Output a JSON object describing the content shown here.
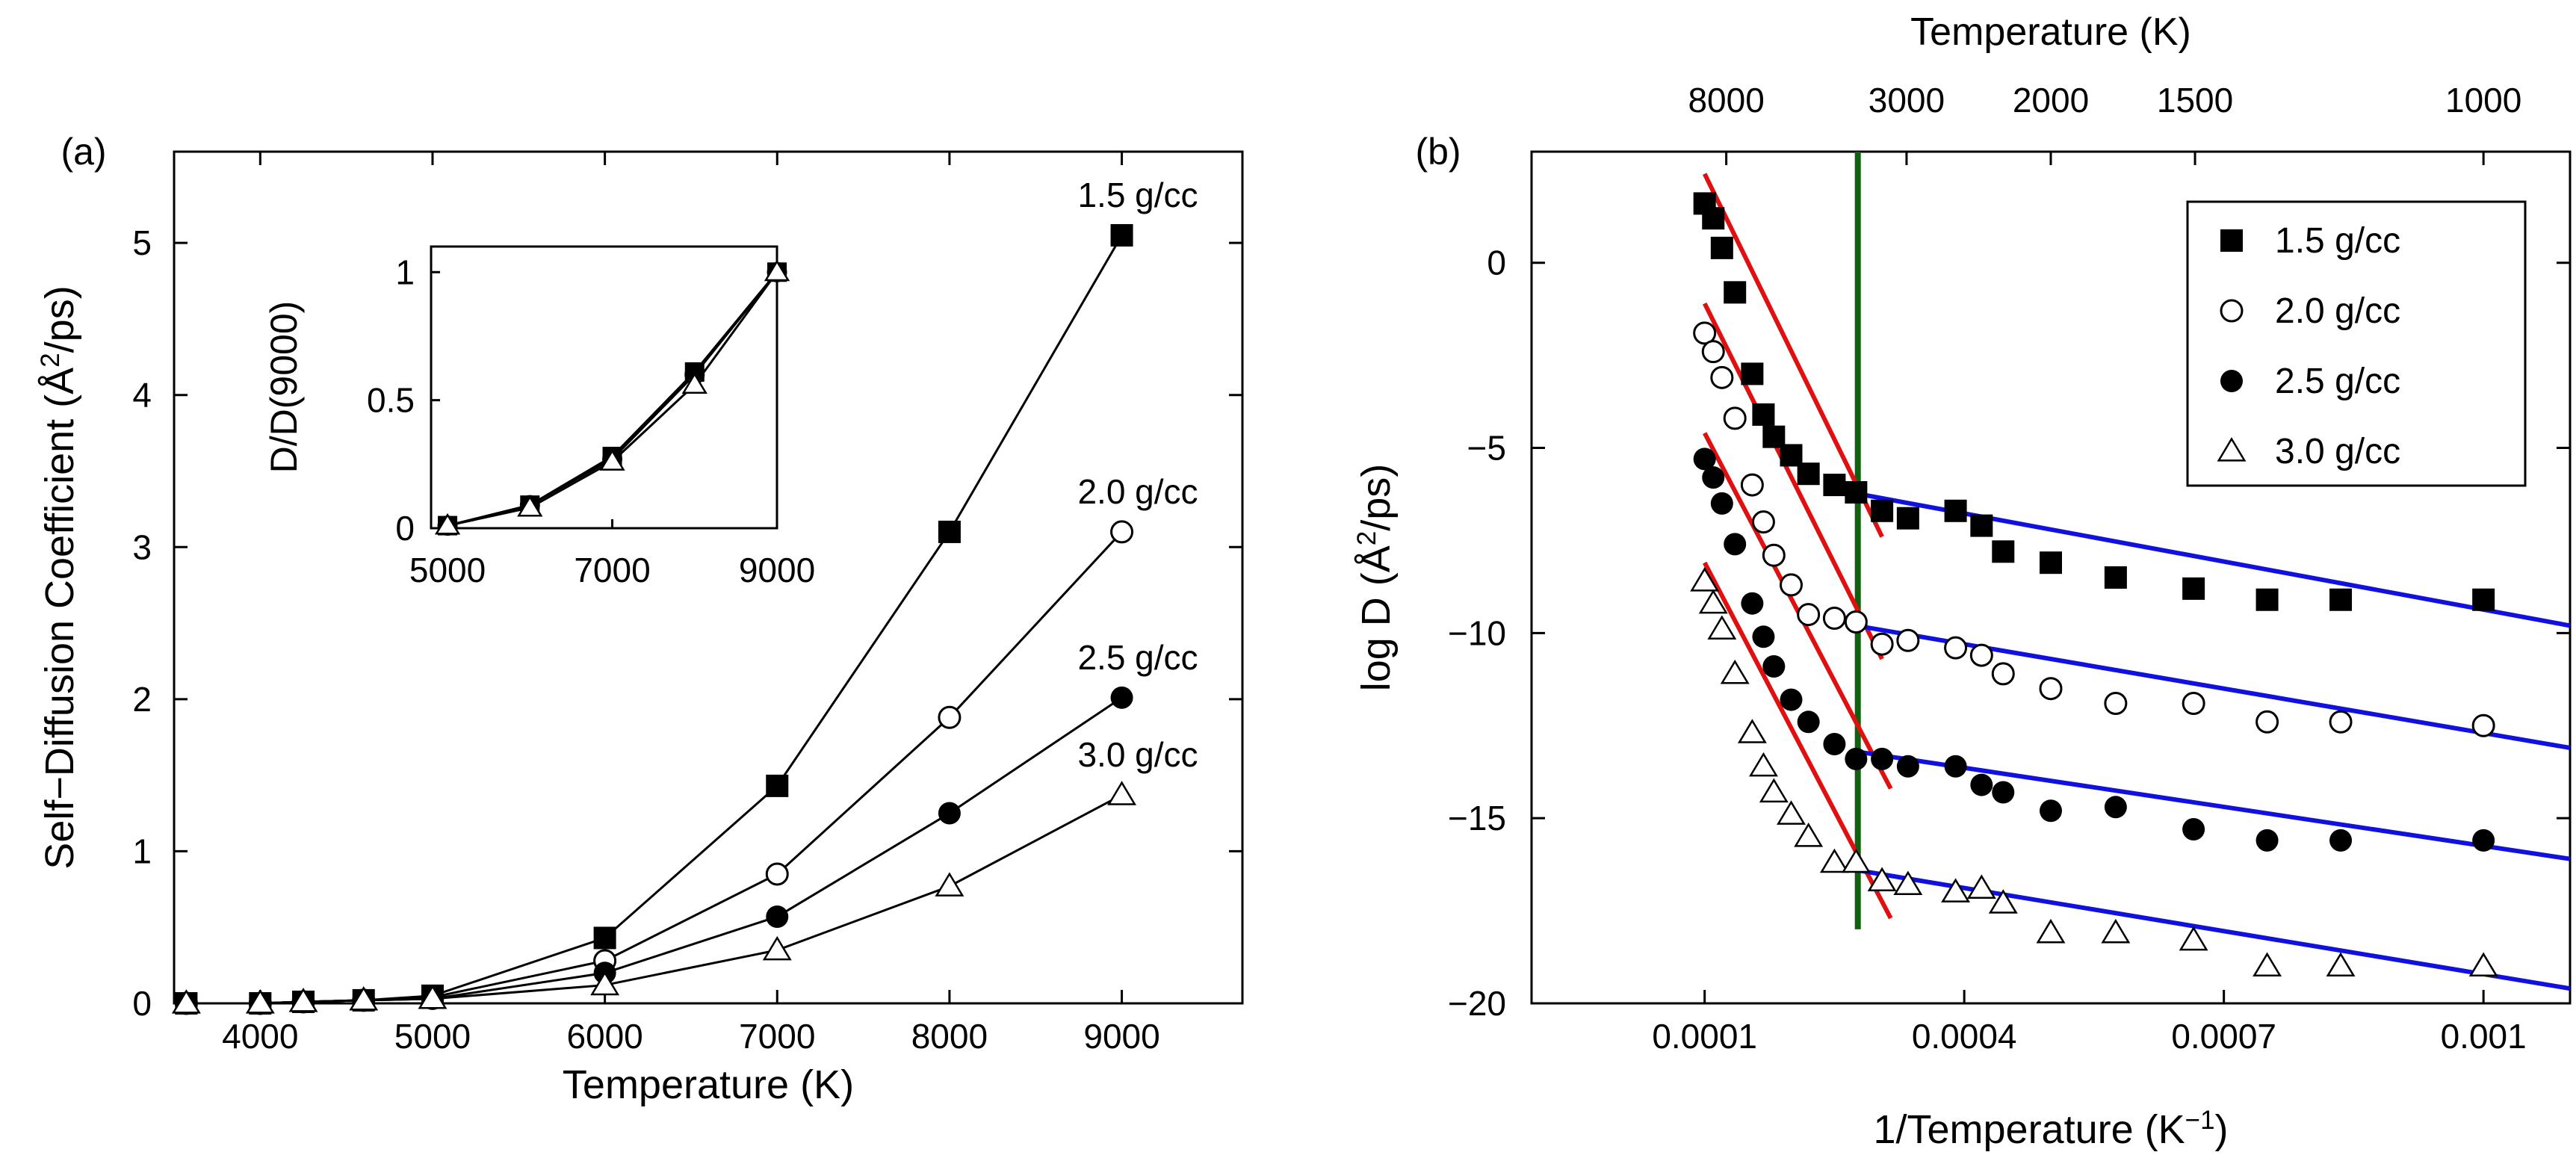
{
  "chart_data": [
    {
      "panel": "(a)",
      "type": "line",
      "xlabel": "Temperature (K)",
      "ylabel": "Self−Diffusion Coefficient (Å",
      "ylabel_sup": "2",
      "ylabel_tail": "/ps)",
      "xlim": [
        3500,
        9700
      ],
      "ylim": [
        0,
        5.6
      ],
      "xticks": [
        4000,
        5000,
        6000,
        7000,
        8000,
        9000
      ],
      "yticks": [
        0,
        1,
        2,
        3,
        4,
        5
      ],
      "x": [
        3571,
        4000,
        4250,
        4600,
        5000,
        6000,
        7000,
        8000,
        9000
      ],
      "series": [
        {
          "name": "1.5 g/cc",
          "marker": "square",
          "values": [
            0,
            0,
            0.01,
            0.02,
            0.05,
            0.43,
            1.43,
            3.1,
            5.05
          ]
        },
        {
          "name": "2.0 g/cc",
          "marker": "circle-open",
          "values": [
            0,
            0,
            0.01,
            0.02,
            0.04,
            0.28,
            0.85,
            1.88,
            3.1
          ]
        },
        {
          "name": "2.5 g/cc",
          "marker": "circle",
          "values": [
            0,
            0,
            0.01,
            0.02,
            0.03,
            0.2,
            0.57,
            1.25,
            2.01
          ]
        },
        {
          "name": "3.0 g/cc",
          "marker": "triangle-open",
          "values": [
            0,
            0,
            0.01,
            0.02,
            0.03,
            0.12,
            0.35,
            0.77,
            1.37
          ]
        }
      ]
    },
    {
      "panel": "(a) inset",
      "type": "line",
      "ylabel": "D/D(9000)",
      "xlim": [
        4800,
        9000
      ],
      "ylim": [
        0,
        1.1
      ],
      "xticks": [
        5000,
        7000,
        9000
      ],
      "yticks": [
        0,
        0.5,
        1
      ],
      "yticklabels": [
        "0",
        "0.5",
        "1"
      ],
      "x": [
        5000,
        6000,
        7000,
        8000,
        9000
      ],
      "series": [
        {
          "name": "1.5 g/cc",
          "marker": "square",
          "values": [
            0.01,
            0.09,
            0.28,
            0.61,
            1
          ]
        },
        {
          "name": "2.0 g/cc",
          "marker": "circle-open",
          "values": [
            0.01,
            0.09,
            0.27,
            0.6,
            1
          ]
        },
        {
          "name": "2.5 g/cc",
          "marker": "circle",
          "values": [
            0.01,
            0.09,
            0.28,
            0.61,
            1
          ]
        },
        {
          "name": "3.0 g/cc",
          "marker": "triangle-open",
          "values": [
            0.01,
            0.08,
            0.26,
            0.56,
            1
          ]
        }
      ]
    },
    {
      "panel": "(b)",
      "type": "scatter",
      "xlabel": "1/Temperature (K",
      "xlabel_sup": "−1",
      "xlabel_tail": ")",
      "ylabel": "log D (Å",
      "ylabel_sup": "2",
      "ylabel_tail": "/ps)",
      "top_axis_label": "Temperature (K)",
      "top_ticks": [
        8000,
        3000,
        2000,
        1500,
        1000
      ],
      "xlim": [
        -0.0001,
        0.0011
      ],
      "ylim": [
        -20,
        3
      ],
      "xticks": [
        0.0001,
        0.0004,
        0.0007,
        0.001
      ],
      "yticks": [
        -20,
        -15,
        -10,
        -5,
        0
      ],
      "vline_x": 0.000277,
      "series": [
        {
          "name": "1.5 g/cc",
          "marker": "square",
          "x": [
            0.0001,
            0.00011,
            0.00012,
            0.000135,
            0.000155,
            0.000168,
            0.00018,
            0.0002,
            0.00022,
            0.00025,
            0.000275,
            0.000305,
            0.000335,
            0.00039,
            0.00042,
            0.000445,
            0.0005,
            0.000575,
            0.000665,
            0.00075,
            0.000835,
            0.001
          ],
          "y": [
            1.6,
            1.2,
            0.4,
            -0.8,
            -3,
            -4.1,
            -4.7,
            -5.2,
            -5.7,
            -6,
            -6.2,
            -6.7,
            -6.9,
            -6.7,
            -7.1,
            -7.8,
            -8.1,
            -8.5,
            -8.8,
            -9.1,
            -9.1,
            -9.1
          ]
        },
        {
          "name": "2.0 g/cc",
          "marker": "circle-open",
          "x": [
            0.0001,
            0.00011,
            0.00012,
            0.000135,
            0.000155,
            0.000168,
            0.00018,
            0.0002,
            0.00022,
            0.00025,
            0.000275,
            0.000305,
            0.000335,
            0.00039,
            0.00042,
            0.000445,
            0.0005,
            0.000575,
            0.000665,
            0.00075,
            0.000835,
            0.001
          ],
          "y": [
            -1.9,
            -2.4,
            -3.1,
            -4.2,
            -6,
            -7,
            -7.9,
            -8.7,
            -9.5,
            -9.6,
            -9.7,
            -10.3,
            -10.2,
            -10.4,
            -10.6,
            -11.1,
            -11.5,
            -11.9,
            -11.9,
            -12.4,
            -12.4,
            -12.5
          ]
        },
        {
          "name": "2.5 g/cc",
          "marker": "circle",
          "x": [
            0.0001,
            0.00011,
            0.00012,
            0.000135,
            0.000155,
            0.000168,
            0.00018,
            0.0002,
            0.00022,
            0.00025,
            0.000275,
            0.000305,
            0.000335,
            0.00039,
            0.00042,
            0.000445,
            0.0005,
            0.000575,
            0.000665,
            0.00075,
            0.000835,
            0.001
          ],
          "y": [
            -5.3,
            -5.8,
            -6.5,
            -7.6,
            -9.2,
            -10.1,
            -10.9,
            -11.8,
            -12.4,
            -13,
            -13.4,
            -13.4,
            -13.6,
            -13.6,
            -14.1,
            -14.3,
            -14.8,
            -14.7,
            -15.3,
            -15.6,
            -15.6,
            -15.6
          ]
        },
        {
          "name": "3.0 g/cc",
          "marker": "triangle-open",
          "x": [
            0.0001,
            0.00011,
            0.00012,
            0.000135,
            0.000155,
            0.000168,
            0.00018,
            0.0002,
            0.00022,
            0.00025,
            0.000275,
            0.000305,
            0.000335,
            0.00039,
            0.00042,
            0.000445,
            0.0005,
            0.000575,
            0.000665,
            0.00075,
            0.000835,
            0.001
          ],
          "y": [
            -8.6,
            -9.2,
            -9.9,
            -11.1,
            -12.7,
            -13.6,
            -14.3,
            -14.9,
            -15.5,
            -16.2,
            -16.2,
            -16.7,
            -16.8,
            -17,
            -16.9,
            -17.3,
            -18.1,
            -18.1,
            -18.3,
            -19,
            -19,
            -19
          ]
        }
      ],
      "fits": [
        {
          "color": "#e01010",
          "x1": 0.0001,
          "y1": 2.4,
          "x2": 0.000305,
          "y2": -7.4
        },
        {
          "color": "#e01010",
          "x1": 0.0001,
          "y1": -1.1,
          "x2": 0.000305,
          "y2": -10.7
        },
        {
          "color": "#e01010",
          "x1": 0.0001,
          "y1": -4.6,
          "x2": 0.000315,
          "y2": -14.2
        },
        {
          "color": "#e01010",
          "x1": 0.0001,
          "y1": -8.1,
          "x2": 0.000315,
          "y2": -17.7
        },
        {
          "color": "#1010e0",
          "x1": 0.000245,
          "y1": -6.1,
          "x2": 0.0011,
          "y2": -9.8
        },
        {
          "color": "#1010e0",
          "x1": 0.000275,
          "y1": -9.8,
          "x2": 0.0011,
          "y2": -13.1
        },
        {
          "color": "#1010e0",
          "x1": 0.000275,
          "y1": -13.2,
          "x2": 0.0011,
          "y2": -16.1
        },
        {
          "color": "#1010e0",
          "x1": 0.000275,
          "y1": -16.4,
          "x2": 0.0011,
          "y2": -19.6
        }
      ],
      "legend": [
        "1.5 g/cc",
        "2.0 g/cc",
        "2.5 g/cc",
        "3.0 g/cc"
      ]
    }
  ],
  "colors": {
    "vline": "#106010",
    "fit_low": "#e01010",
    "fit_high": "#1010e0"
  }
}
